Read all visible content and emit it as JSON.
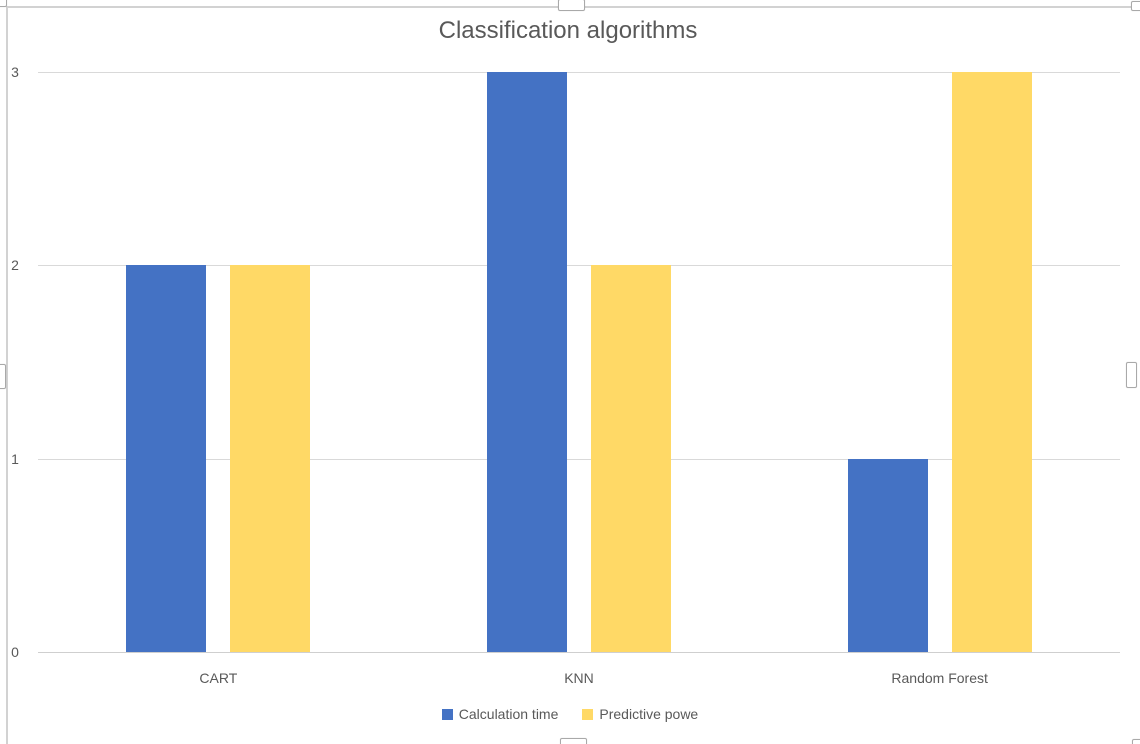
{
  "chart_data": {
    "type": "bar",
    "title": "Classification algorithms",
    "categories": [
      "CART",
      "KNN",
      "Random Forest"
    ],
    "series": [
      {
        "name": "Calculation time",
        "color": "#4472C4",
        "values": [
          2,
          3,
          1
        ]
      },
      {
        "name": "Predictive powe",
        "color": "#FFD966",
        "values": [
          2,
          2,
          3
        ]
      }
    ],
    "xlabel": "",
    "ylabel": "",
    "ylim": [
      0,
      3
    ],
    "yticks": [
      0,
      1,
      2,
      3
    ],
    "grid": true,
    "legend_position": "bottom",
    "colors": {
      "title_text": "#595959",
      "axis_text": "#595959",
      "gridline": "#D9D9D9",
      "axis_line": "#CFCFCF",
      "frame_border": "#D2D2D2",
      "handle_border": "#A9A9A9"
    }
  },
  "selection": {
    "selected": true,
    "handles": [
      "top-left",
      "top-center",
      "top-right",
      "left-middle",
      "right-middle",
      "bottom-center",
      "bottom-right"
    ]
  }
}
